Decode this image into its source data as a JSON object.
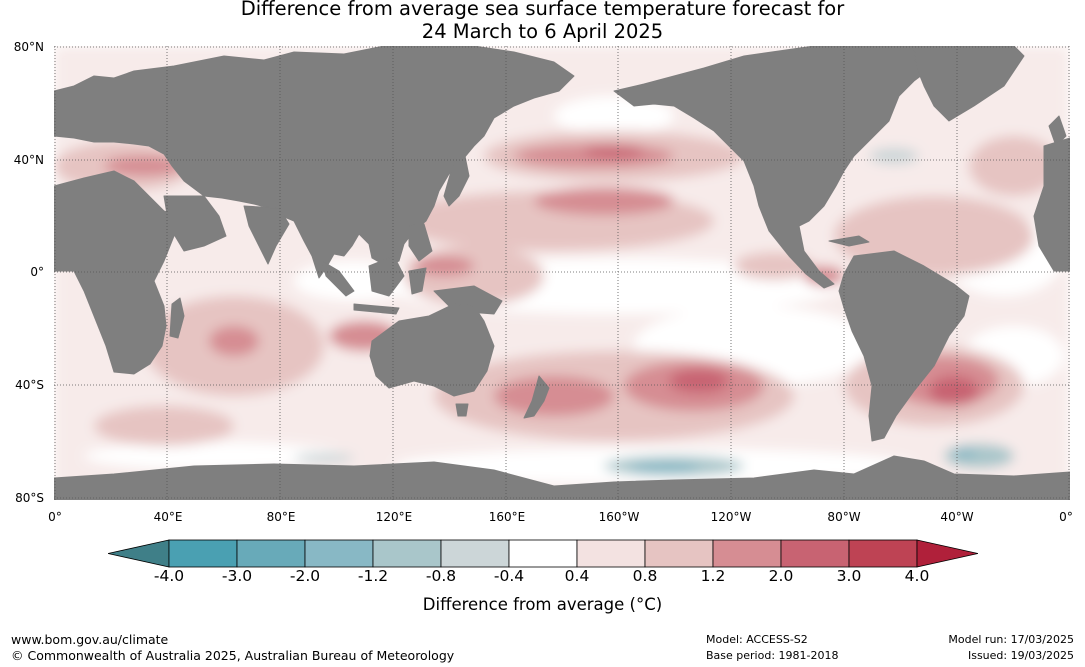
{
  "title": {
    "line1": "Difference from average sea surface temperature forecast for",
    "line2": "24 March to 6 April 2025"
  },
  "map": {
    "y_ticks": [
      "80°N",
      "40°N",
      "0°",
      "40°S",
      "80°S"
    ],
    "x_ticks": [
      "0°",
      "40°E",
      "80°E",
      "120°E",
      "160°E",
      "160°W",
      "120°W",
      "80°W",
      "40°W",
      "0°"
    ],
    "land_color": "#7f7f7f",
    "grid": "dotted"
  },
  "colorbar": {
    "title": "Difference from average (°C)",
    "ticks": [
      "-4.0",
      "-3.0",
      "-2.0",
      "-1.2",
      "-0.8",
      "-0.4",
      "0.4",
      "0.8",
      "1.2",
      "2.0",
      "3.0",
      "4.0"
    ],
    "colors": {
      "below": "#3f7f88",
      "bins": [
        "#4aa0b2",
        "#68aab9",
        "#88b8c5",
        "#a9c6ca",
        "#ccd6d8",
        "#ffffff",
        "#f3e2e1",
        "#e6c4c2",
        "#d68d93",
        "#c86372",
        "#be4354"
      ],
      "above": "#b0203a"
    }
  },
  "footer": {
    "website": "www.bom.gov.au/climate",
    "copyright": "© Commonwealth of Australia 2025, Australian Bureau of Meteorology",
    "model": "Model: ACCESS-S2",
    "base_period": "Base period: 1981-2018",
    "model_run": "Model run: 17/03/2025",
    "issued": "Issued: 19/03/2025"
  }
}
